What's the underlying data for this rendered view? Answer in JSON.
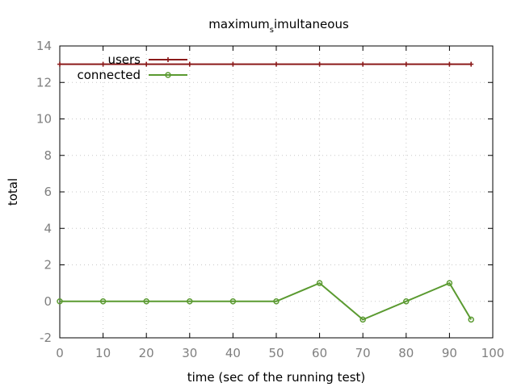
{
  "chart_data": {
    "type": "line",
    "title": "maximum",
    "title_subscript": "s",
    "title_rest": "imultaneous",
    "xlabel": "time (sec of the running test)",
    "ylabel": "total",
    "xlim": [
      0,
      100
    ],
    "ylim": [
      -2,
      14
    ],
    "xticks": [
      0,
      10,
      20,
      30,
      40,
      50,
      60,
      70,
      80,
      90,
      100
    ],
    "yticks": [
      -2,
      0,
      2,
      4,
      6,
      8,
      10,
      12,
      14
    ],
    "grid": true,
    "legend_position": "top-left",
    "series": [
      {
        "name": "users",
        "color": "#8b1a1a",
        "marker": "plus",
        "x": [
          0,
          10,
          20,
          30,
          40,
          50,
          60,
          70,
          80,
          90,
          95
        ],
        "y": [
          13,
          13,
          13,
          13,
          13,
          13,
          13,
          13,
          13,
          13,
          13
        ]
      },
      {
        "name": "connected",
        "color": "#5a9a30",
        "marker": "circle",
        "x": [
          0,
          10,
          20,
          30,
          40,
          50,
          60,
          70,
          80,
          90,
          95
        ],
        "y": [
          0,
          0,
          0,
          0,
          0,
          0,
          1,
          -1,
          0,
          1,
          -1
        ]
      }
    ]
  }
}
